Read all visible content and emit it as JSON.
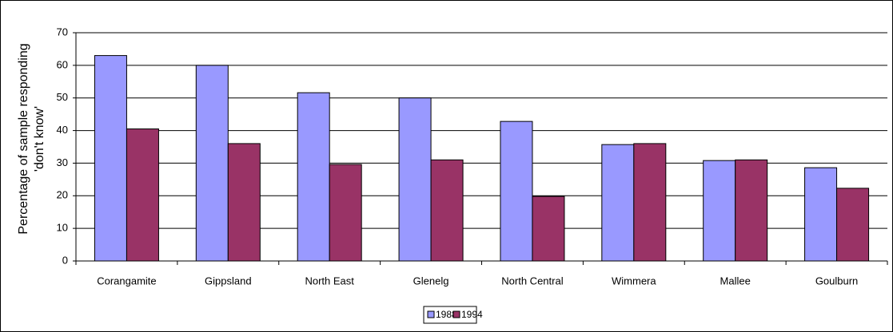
{
  "chart_data": {
    "type": "bar",
    "ylabel": [
      "Percentage of sample responding",
      "'don't know'"
    ],
    "categories": [
      "Corangamite",
      "Gippsland",
      "North East",
      "Glenelg",
      "North Central",
      "Wimmera",
      "Mallee",
      "Goulburn"
    ],
    "series": [
      {
        "name": "1988",
        "color": "#9999ff",
        "values": [
          63,
          60,
          51.6,
          50,
          42.8,
          35.7,
          30.8,
          28.6
        ]
      },
      {
        "name": "1994",
        "color": "#993366",
        "values": [
          40.5,
          36,
          29.6,
          31,
          19.8,
          36,
          31,
          22.3
        ]
      }
    ],
    "ylim": [
      0,
      70
    ],
    "yticks": [
      0,
      10,
      20,
      30,
      40,
      50,
      60,
      70
    ],
    "grid": true,
    "legend": "bottom"
  }
}
